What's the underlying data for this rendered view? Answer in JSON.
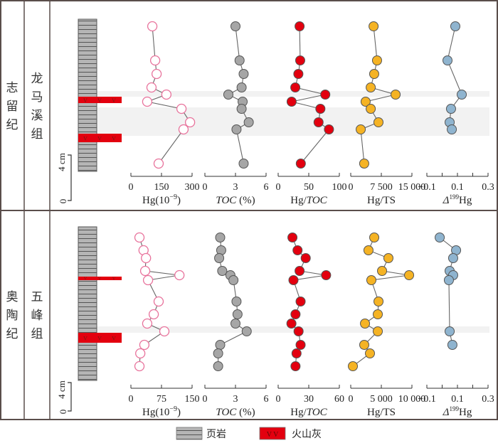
{
  "legend": {
    "shale": "页岩",
    "ash": "火山灰",
    "ash_symbol": "V V"
  },
  "scale_bar": {
    "zero": "0",
    "label": "4 cm"
  },
  "colors": {
    "hg": "#e8739c",
    "toc": "#a6a6a6",
    "hgtoc": "#e3000f",
    "hgts": "#f5b324",
    "d199": "#8fb4cf",
    "band": "#f2f2f2",
    "ash": "#e3000f",
    "frame": "#5a4e4b"
  },
  "sections": [
    {
      "period": "志留纪",
      "formation": "龙马溪组",
      "period_chars": [
        "志",
        "留",
        "纪"
      ],
      "formation_chars": [
        "龙",
        "马",
        "溪",
        "组"
      ]
    },
    {
      "period": "奥陶纪",
      "formation": "五峰组",
      "period_chars": [
        "奥",
        "陶",
        "纪"
      ],
      "formation_chars": [
        "五",
        "峰",
        "组"
      ]
    }
  ],
  "chart_data": [
    {
      "type": "line",
      "section": "志留纪 龙马溪组",
      "depth_note": "samples ordered top to bottom",
      "panels": [
        {
          "name": "Hg",
          "xlabel": "Hg(10⁻⁹)",
          "ticks": [
            "0",
            "150",
            "300"
          ],
          "xlim": [
            0,
            300
          ],
          "values": [
            105,
            119,
            126,
            101,
            174,
            80,
            248,
            290,
            258,
            136
          ]
        },
        {
          "name": "TOC",
          "xlabel": "TOC (%)",
          "ticks": [
            "0",
            "3",
            "6"
          ],
          "xlim": [
            0,
            6
          ],
          "values": [
            3.0,
            3.4,
            3.8,
            3.6,
            2.3,
            3.7,
            3.6,
            4.3,
            3.1,
            3.8
          ]
        },
        {
          "name": "Hg/TOC",
          "xlabel": "Hg/TOC",
          "ticks": [
            "0",
            "50",
            "100"
          ],
          "xlim": [
            0,
            100
          ],
          "values": [
            35,
            36,
            33,
            28,
            77,
            22,
            69,
            66,
            83,
            37
          ]
        },
        {
          "name": "Hg/TS",
          "xlabel": "Hg/TS",
          "ticks": [
            "0",
            "7 500",
            "15 000"
          ],
          "xlim": [
            0,
            15000
          ],
          "values": [
            5600,
            6450,
            5750,
            4900,
            11000,
            3650,
            4900,
            6800,
            2450,
            3300
          ]
        },
        {
          "name": "D199Hg",
          "xlabel": "Δ199Hg",
          "ticks": [
            "−0.1",
            "0.1",
            "0.3"
          ],
          "xlim": [
            -0.1,
            0.3
          ],
          "sample_index": [
            0,
            1,
            4,
            6,
            7,
            8
          ],
          "values": [
            0.086,
            0.035,
            0.128,
            0.058,
            0.049,
            0.063
          ]
        }
      ],
      "depth_levels": [
        0,
        1,
        2,
        3,
        4,
        5,
        6,
        7,
        8,
        9
      ]
    },
    {
      "type": "line",
      "section": "奥陶纪 五峰组",
      "depth_note": "samples ordered top to bottom",
      "panels": [
        {
          "name": "Hg",
          "xlabel": "Hg(10⁻⁹)",
          "ticks": [
            "0",
            "75",
            "150"
          ],
          "xlim": [
            0,
            150
          ],
          "values": [
            21,
            31,
            37,
            35,
            119,
            42,
            68,
            56,
            40,
            82,
            33,
            23,
            21
          ]
        },
        {
          "name": "TOC",
          "xlabel": "TOC (%)",
          "ticks": [
            "0",
            "3",
            "6"
          ],
          "xlim": [
            0,
            6
          ],
          "values": [
            1.5,
            1.6,
            1.4,
            1.7,
            2.5,
            2.8,
            3.1,
            3.2,
            3.0,
            4.1,
            1.5,
            1.3,
            1.3
          ]
        },
        {
          "name": "Hg/TOC",
          "xlabel": "Hg/TOC",
          "ticks": [
            "0",
            "30",
            "60"
          ],
          "xlim": [
            0,
            60
          ],
          "values": [
            14,
            19,
            27,
            21,
            47,
            15,
            22,
            17,
            13,
            20,
            22,
            18,
            17
          ]
        },
        {
          "name": "Hg/TS",
          "xlabel": "Hg/TS",
          "ticks": [
            "0",
            "5 000",
            "10 000"
          ],
          "xlim": [
            0,
            10000
          ],
          "values": [
            3840,
            2900,
            6160,
            5120,
            9540,
            3370,
            4540,
            4420,
            2330,
            4420,
            2210,
            3140,
            350
          ]
        },
        {
          "name": "D199Hg",
          "xlabel": "Δ199Hg",
          "ticks": [
            "−0.1",
            "0.1",
            "0.3"
          ],
          "xlim": [
            -0.1,
            0.3
          ],
          "sample_index": [
            0,
            1,
            2,
            3,
            4,
            5,
            9,
            10
          ],
          "values": [
            -0.016,
            0.091,
            0.072,
            0.049,
            0.072,
            0.044,
            0.049,
            0.067
          ]
        }
      ]
    }
  ]
}
